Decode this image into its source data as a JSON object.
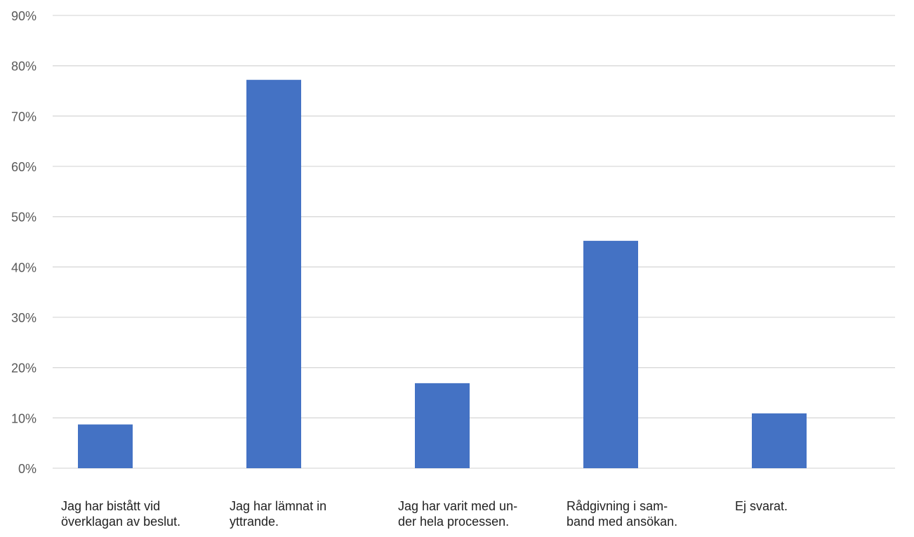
{
  "chart_data": {
    "type": "bar",
    "categories": [
      "Jag har bistått vid\növerklagan av beslut.",
      "Jag har lämnat in\nyttrande.",
      "Jag har varit med un-\nder hela processen.",
      "Rådgivning i sam-\nband med ansökan.",
      "Ej svarat."
    ],
    "values": [
      8.7,
      77.2,
      16.9,
      45.2,
      10.9
    ],
    "ylim": [
      0,
      90
    ],
    "yticks": [
      "0%",
      "10%",
      "20%",
      "30%",
      "40%",
      "50%",
      "60%",
      "70%",
      "80%",
      "90%"
    ],
    "bar_color": "#4472C4",
    "grid": true,
    "title": "",
    "xlabel": "",
    "ylabel": ""
  }
}
